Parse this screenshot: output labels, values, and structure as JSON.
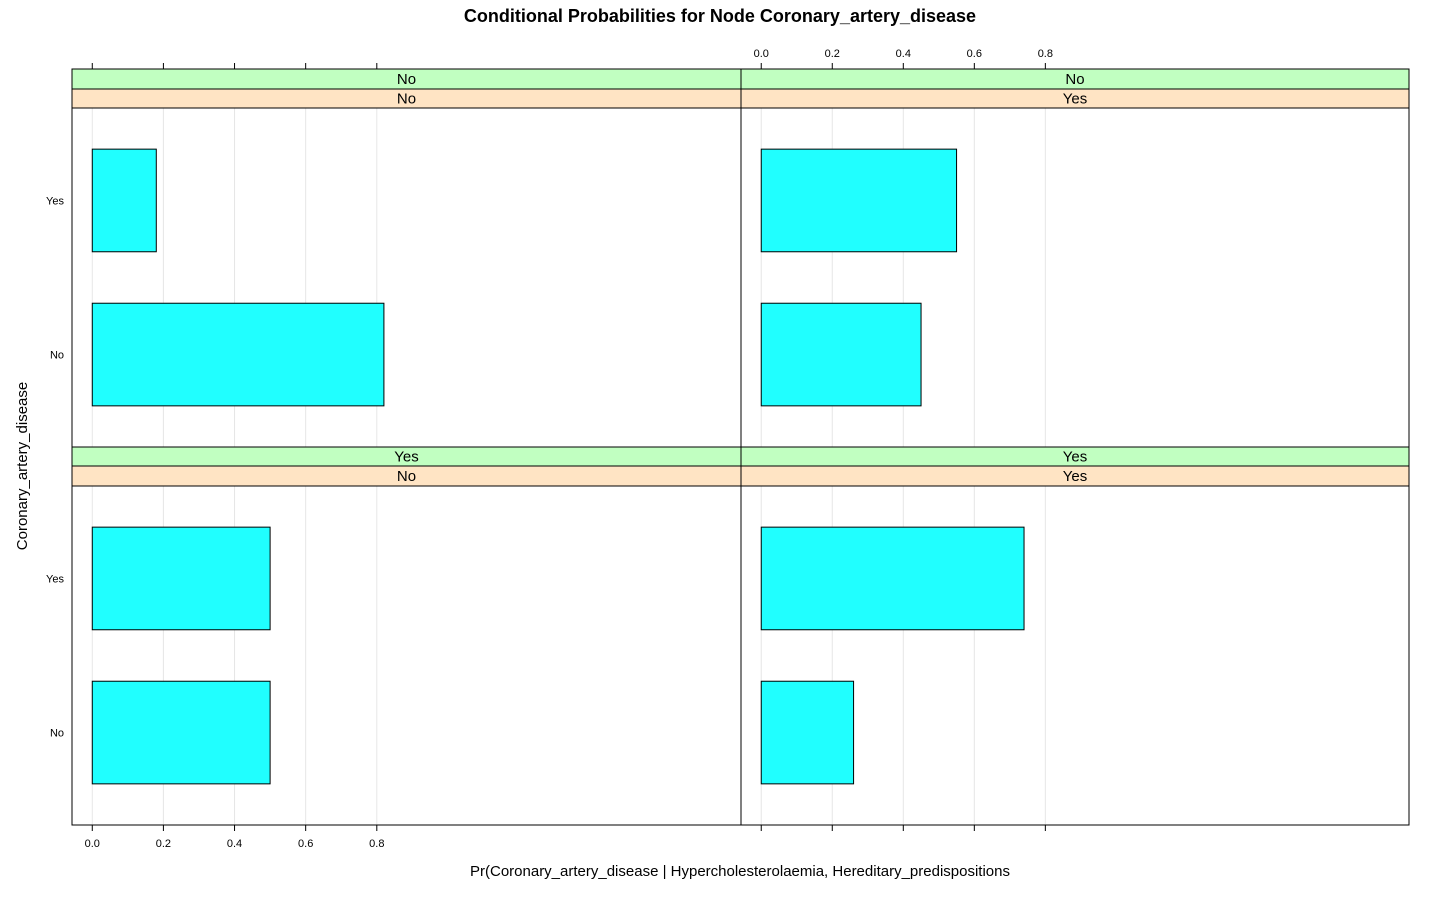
{
  "chart_data": {
    "type": "bar",
    "orientation": "horizontal",
    "title": "Conditional Probabilities for Node Coronary_artery_disease",
    "xlabel": "Pr(Coronary_artery_disease | Hypercholesterolaemia, Hereditary_predispositions",
    "ylabel": "Coronary_artery_disease",
    "categories": [
      "No",
      "Yes"
    ],
    "x_ticks": [
      0.0,
      0.2,
      0.4,
      0.6,
      0.8
    ],
    "x_tick_labels": [
      "0.0",
      "0.2",
      "0.4",
      "0.6",
      "0.8"
    ],
    "xlim": [
      -0.057,
      1.824
    ],
    "grid": true,
    "strip_colors": {
      "top_strip": "#c1ffc1",
      "bottom_strip": "#ffe4c4"
    },
    "bar_color": "#20ffff",
    "panels": [
      {
        "row": "top",
        "col": "left",
        "strip_top": "No",
        "strip_bottom": "No",
        "values": [
          0.82,
          0.18
        ]
      },
      {
        "row": "top",
        "col": "right",
        "strip_top": "No",
        "strip_bottom": "Yes",
        "values": [
          0.45,
          0.55
        ]
      },
      {
        "row": "bottom",
        "col": "left",
        "strip_top": "Yes",
        "strip_bottom": "No",
        "values": [
          0.5,
          0.5
        ]
      },
      {
        "row": "bottom",
        "col": "right",
        "strip_top": "Yes",
        "strip_bottom": "Yes",
        "values": [
          0.26,
          0.74
        ]
      }
    ]
  }
}
